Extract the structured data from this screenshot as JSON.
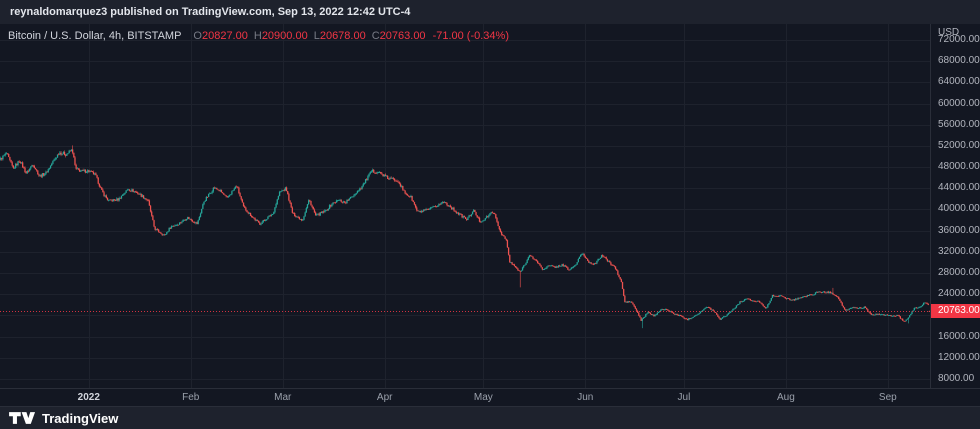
{
  "header": {
    "published_line": "reynaldomarquez3 published on TradingView.com, Sep 13, 2022 12:42 UTC-4"
  },
  "legend": {
    "symbol": "Bitcoin / U.S. Dollar, 4h, BITSTAMP",
    "open_label": "O",
    "open": "20827.00",
    "high_label": "H",
    "high": "20900.00",
    "low_label": "L",
    "low": "20678.00",
    "close_label": "C",
    "close": "20763.00",
    "change": "-71.00 (-0.34%)"
  },
  "price_axis": {
    "unit": "USD",
    "visible_labels": [
      "72000.00",
      "68000.00",
      "64000.00",
      "60000.00",
      "56000.00",
      "52000.00",
      "48000.00",
      "44000.00",
      "40000.00",
      "36000.00",
      "32000.00",
      "28000.00",
      "24000.00",
      "16000.00",
      "12000.00",
      "8000.00"
    ],
    "current_price": "20763.00"
  },
  "time_axis": {
    "labels": [
      {
        "text": "2022",
        "date": "2022-01-01",
        "emphasis": true
      },
      {
        "text": "Feb",
        "date": "2022-02-01"
      },
      {
        "text": "Mar",
        "date": "2022-03-01"
      },
      {
        "text": "Apr",
        "date": "2022-04-01"
      },
      {
        "text": "May",
        "date": "2022-05-01"
      },
      {
        "text": "Jun",
        "date": "2022-06-01"
      },
      {
        "text": "Jul",
        "date": "2022-07-01"
      },
      {
        "text": "Aug",
        "date": "2022-08-01"
      },
      {
        "text": "Sep",
        "date": "2022-09-01"
      }
    ]
  },
  "footer": {
    "brand": "TradingView"
  },
  "colors": {
    "background": "#131722",
    "panel": "#1e222d",
    "grid": "#1e222d",
    "border": "#2a2e39",
    "text_primary": "#d1d4dc",
    "text_secondary": "#b2b5be",
    "text_dim": "#787b86",
    "up": "#26a69a",
    "down": "#ef5350",
    "accent_red": "#f23645"
  },
  "chart_data": {
    "type": "candlestick",
    "title": "Bitcoin / U.S. Dollar",
    "interval": "4h",
    "exchange": "BITSTAMP",
    "currency": "USD",
    "last_candle": {
      "open": 20827,
      "high": 20900,
      "low": 20678,
      "close": 20763,
      "change": -71.0,
      "change_pct": -0.34
    },
    "time_range": {
      "start": "2021-12-05T00:00:00Z",
      "end": "2022-09-13T20:00:00Z"
    },
    "y_axis": {
      "top_price": 75020,
      "bottom_price": 6300,
      "tick_step": 4000,
      "ticks": [
        8000,
        12000,
        16000,
        20000,
        24000,
        28000,
        32000,
        36000,
        40000,
        44000,
        48000,
        52000,
        56000,
        60000,
        64000,
        68000,
        72000
      ]
    },
    "candle_count": 800,
    "keypoints": [
      [
        "2021-12-05",
        49400
      ],
      [
        "2021-12-07",
        50600
      ],
      [
        "2021-12-09",
        47700
      ],
      [
        "2021-12-11",
        49300
      ],
      [
        "2021-12-13",
        46800
      ],
      [
        "2021-12-15",
        48600
      ],
      [
        "2021-12-17",
        46300
      ],
      [
        "2021-12-19",
        46900
      ],
      [
        "2021-12-21",
        48900
      ],
      [
        "2021-12-23",
        50800
      ],
      [
        "2021-12-25",
        50400
      ],
      [
        "2021-12-27",
        51300
      ],
      [
        "2021-12-28",
        47600
      ],
      [
        "2021-12-30",
        47200
      ],
      [
        "2022-01-01",
        47300
      ],
      [
        "2022-01-03",
        46500
      ],
      [
        "2022-01-05",
        43400
      ],
      [
        "2022-01-07",
        41600
      ],
      [
        "2022-01-10",
        41900
      ],
      [
        "2022-01-13",
        43900
      ],
      [
        "2022-01-16",
        43100
      ],
      [
        "2022-01-19",
        41700
      ],
      [
        "2022-01-21",
        36400
      ],
      [
        "2022-01-24",
        35100
      ],
      [
        "2022-01-26",
        36800
      ],
      [
        "2022-01-28",
        37200
      ],
      [
        "2022-01-31",
        38500
      ],
      [
        "2022-02-03",
        37300
      ],
      [
        "2022-02-05",
        41500
      ],
      [
        "2022-02-08",
        44100
      ],
      [
        "2022-02-10",
        43500
      ],
      [
        "2022-02-12",
        42100
      ],
      [
        "2022-02-15",
        44500
      ],
      [
        "2022-02-17",
        40500
      ],
      [
        "2022-02-20",
        38400
      ],
      [
        "2022-02-22",
        37300
      ],
      [
        "2022-02-24",
        38300
      ],
      [
        "2022-02-26",
        39200
      ],
      [
        "2022-02-28",
        43200
      ],
      [
        "2022-03-02",
        44000
      ],
      [
        "2022-03-04",
        39200
      ],
      [
        "2022-03-07",
        38000
      ],
      [
        "2022-03-09",
        41900
      ],
      [
        "2022-03-11",
        38800
      ],
      [
        "2022-03-14",
        39700
      ],
      [
        "2022-03-16",
        41100
      ],
      [
        "2022-03-18",
        41800
      ],
      [
        "2022-03-20",
        41300
      ],
      [
        "2022-03-22",
        42400
      ],
      [
        "2022-03-25",
        44300
      ],
      [
        "2022-03-28",
        47200
      ],
      [
        "2022-03-30",
        47100
      ],
      [
        "2022-04-02",
        45900
      ],
      [
        "2022-04-05",
        45500
      ],
      [
        "2022-04-07",
        43200
      ],
      [
        "2022-04-09",
        42300
      ],
      [
        "2022-04-11",
        39500
      ],
      [
        "2022-04-14",
        39900
      ],
      [
        "2022-04-16",
        40400
      ],
      [
        "2022-04-19",
        41500
      ],
      [
        "2022-04-21",
        40500
      ],
      [
        "2022-04-23",
        39400
      ],
      [
        "2022-04-26",
        38100
      ],
      [
        "2022-04-28",
        39800
      ],
      [
        "2022-04-30",
        37700
      ],
      [
        "2022-05-02",
        38500
      ],
      [
        "2022-05-04",
        39700
      ],
      [
        "2022-05-06",
        36000
      ],
      [
        "2022-05-08",
        34100
      ],
      [
        "2022-05-09",
        30100
      ],
      [
        "2022-05-11",
        29000
      ],
      [
        "2022-05-12",
        28100
      ],
      [
        "2022-05-14",
        30100
      ],
      [
        "2022-05-15",
        31300
      ],
      [
        "2022-05-17",
        30400
      ],
      [
        "2022-05-19",
        28700
      ],
      [
        "2022-05-21",
        29400
      ],
      [
        "2022-05-23",
        29100
      ],
      [
        "2022-05-25",
        29600
      ],
      [
        "2022-05-27",
        28600
      ],
      [
        "2022-05-29",
        29500
      ],
      [
        "2022-05-31",
        31800
      ],
      [
        "2022-06-02",
        30100
      ],
      [
        "2022-06-04",
        29700
      ],
      [
        "2022-06-06",
        31400
      ],
      [
        "2022-06-08",
        30200
      ],
      [
        "2022-06-10",
        29100
      ],
      [
        "2022-06-12",
        26200
      ],
      [
        "2022-06-13",
        22500
      ],
      [
        "2022-06-15",
        22600
      ],
      [
        "2022-06-17",
        20400
      ],
      [
        "2022-06-18",
        19000
      ],
      [
        "2022-06-20",
        20600
      ],
      [
        "2022-06-22",
        19900
      ],
      [
        "2022-06-24",
        21200
      ],
      [
        "2022-06-26",
        21000
      ],
      [
        "2022-06-28",
        20300
      ],
      [
        "2022-06-30",
        19900
      ],
      [
        "2022-07-02",
        19200
      ],
      [
        "2022-07-05",
        20200
      ],
      [
        "2022-07-08",
        21600
      ],
      [
        "2022-07-10",
        20900
      ],
      [
        "2022-07-12",
        19300
      ],
      [
        "2022-07-14",
        20100
      ],
      [
        "2022-07-16",
        21200
      ],
      [
        "2022-07-18",
        22500
      ],
      [
        "2022-07-20",
        23200
      ],
      [
        "2022-07-22",
        22700
      ],
      [
        "2022-07-24",
        22600
      ],
      [
        "2022-07-26",
        21300
      ],
      [
        "2022-07-28",
        23800
      ],
      [
        "2022-07-30",
        23700
      ],
      [
        "2022-08-01",
        23300
      ],
      [
        "2022-08-03",
        22850
      ],
      [
        "2022-08-05",
        23300
      ],
      [
        "2022-08-08",
        23800
      ],
      [
        "2022-08-11",
        24400
      ],
      [
        "2022-08-13",
        24400
      ],
      [
        "2022-08-15",
        24300
      ],
      [
        "2022-08-17",
        23300
      ],
      [
        "2022-08-19",
        20800
      ],
      [
        "2022-08-21",
        21500
      ],
      [
        "2022-08-23",
        21400
      ],
      [
        "2022-08-25",
        21550
      ],
      [
        "2022-08-27",
        20000
      ],
      [
        "2022-08-29",
        20300
      ],
      [
        "2022-08-31",
        20050
      ],
      [
        "2022-09-02",
        19950
      ],
      [
        "2022-09-04",
        19990
      ],
      [
        "2022-09-06",
        18800
      ],
      [
        "2022-09-07",
        19300
      ],
      [
        "2022-09-09",
        21350
      ],
      [
        "2022-09-11",
        21650
      ],
      [
        "2022-09-12",
        22380
      ],
      [
        "2022-09-13T04:00:00Z",
        22300
      ],
      [
        "2022-09-13T12:00:00Z",
        21200
      ],
      [
        "2022-09-13T20:00:00Z",
        20763
      ]
    ],
    "notable_wicks": [
      [
        "2021-12-27",
        "high",
        52100
      ],
      [
        "2022-05-12",
        "low",
        25300
      ],
      [
        "2022-06-18",
        "low",
        17600
      ],
      [
        "2022-08-15",
        "high",
        25200
      ],
      [
        "2022-09-07",
        "low",
        18500
      ]
    ]
  }
}
